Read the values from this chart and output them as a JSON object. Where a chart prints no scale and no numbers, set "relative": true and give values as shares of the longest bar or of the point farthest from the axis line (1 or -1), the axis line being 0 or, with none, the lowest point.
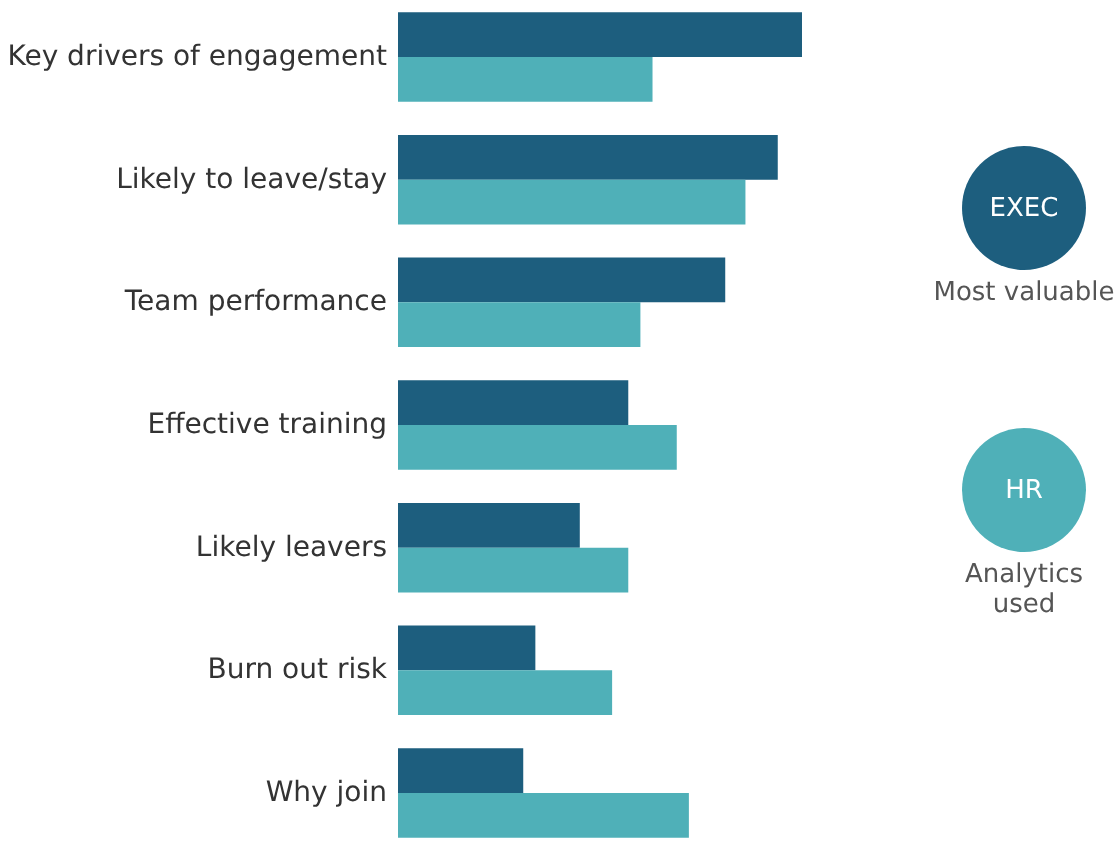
{
  "chart_data": {
    "type": "bar",
    "orientation": "horizontal",
    "relative": true,
    "legend": "right",
    "categories": [
      "Key drivers of engagement",
      "Likely to leave/stay",
      "Team performance",
      "Effective training",
      "Likely leavers",
      "Burn out risk",
      "Why join"
    ],
    "series": [
      {
        "name": "EXEC",
        "color": "#1d5e7e",
        "values": [
          1.0,
          0.94,
          0.81,
          0.57,
          0.45,
          0.34,
          0.31
        ]
      },
      {
        "name": "HR",
        "color": "#4fb0b8",
        "values": [
          0.63,
          0.86,
          0.6,
          0.69,
          0.57,
          0.53,
          0.72
        ]
      }
    ],
    "annotations": [
      "Most valuable",
      "Analytics used"
    ]
  }
}
